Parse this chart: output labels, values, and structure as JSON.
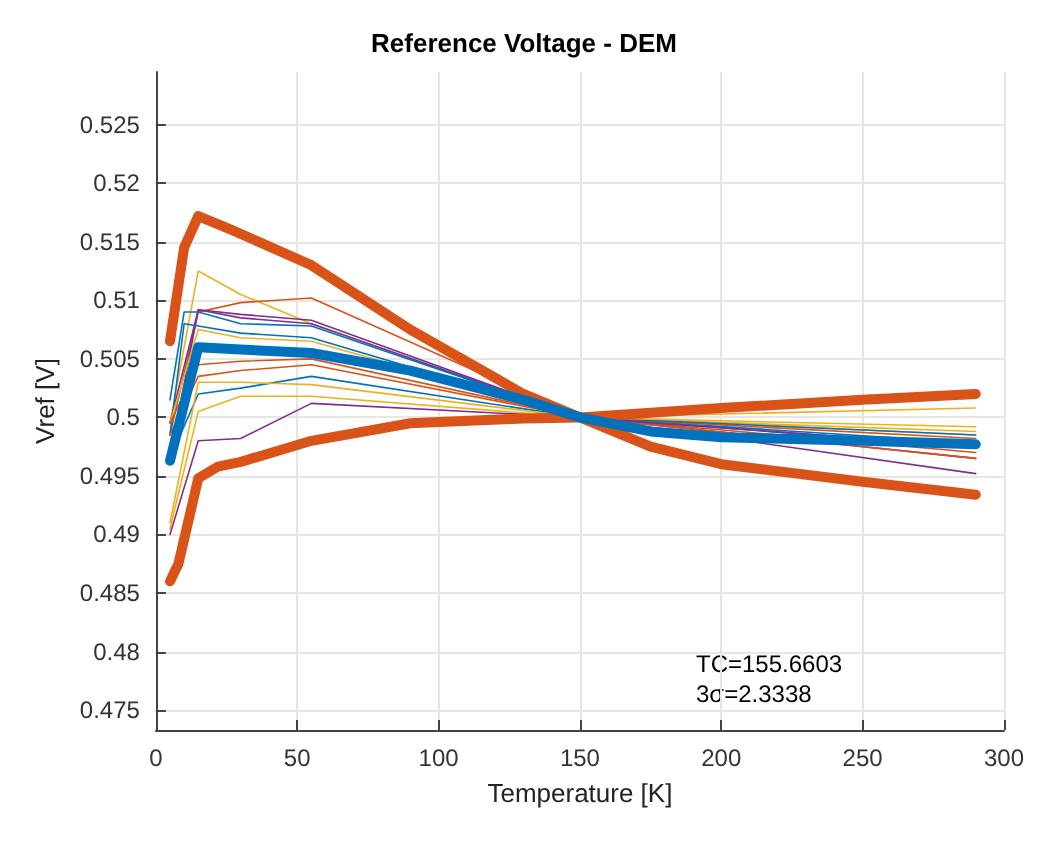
{
  "chart_data": {
    "type": "line",
    "title": "Reference Voltage - DEM",
    "xlabel": "Temperature [K]",
    "ylabel": "Vref [V]",
    "xlim": [
      0,
      300
    ],
    "xticks": [
      0,
      50,
      100,
      150,
      200,
      250,
      300
    ],
    "ylim": [
      0.4733,
      0.5295
    ],
    "yticks": [
      0.475,
      0.48,
      0.485,
      0.49,
      0.495,
      0.5,
      0.505,
      0.51,
      0.515,
      0.52,
      0.525
    ],
    "grid": true,
    "line_style": "solid",
    "marker": "none",
    "annotations": [
      "TC=155.6603",
      "3σ=2.3338"
    ],
    "series": [
      {
        "color": "#edb120",
        "x": [
          5,
          15,
          30,
          55,
          150,
          290
        ],
        "values": [
          0.4995,
          0.5125,
          0.5105,
          0.508,
          0.5,
          0.4985
        ]
      },
      {
        "color": "#d95319",
        "x": [
          5,
          15,
          30,
          55,
          150,
          290
        ],
        "values": [
          0.4985,
          0.509,
          0.5098,
          0.5102,
          0.5,
          0.497
        ]
      },
      {
        "color": "#7e2f8e",
        "x": [
          5,
          15,
          30,
          55,
          150,
          290
        ],
        "values": [
          0.4995,
          0.5092,
          0.5085,
          0.508,
          0.5,
          0.4965
        ]
      },
      {
        "color": "#0072bd",
        "x": [
          5,
          10,
          15,
          30,
          55,
          150,
          290
        ],
        "values": [
          0.5015,
          0.509,
          0.509,
          0.508,
          0.5078,
          0.5,
          0.4978
        ]
      },
      {
        "color": "#0072bd",
        "x": [
          5,
          10,
          15,
          30,
          55,
          150,
          290
        ],
        "values": [
          0.4985,
          0.508,
          0.5078,
          0.5072,
          0.5068,
          0.5,
          0.4975
        ]
      },
      {
        "color": "#7e2f8e",
        "x": [
          5,
          15,
          30,
          55,
          150,
          290
        ],
        "values": [
          0.4965,
          0.5092,
          0.5088,
          0.5083,
          0.5,
          0.4952
        ]
      },
      {
        "color": "#edb120",
        "x": [
          5,
          15,
          30,
          55,
          150,
          290
        ],
        "values": [
          0.4995,
          0.5075,
          0.5068,
          0.5065,
          0.5,
          0.4988
        ]
      },
      {
        "color": "#d95319",
        "x": [
          5,
          15,
          30,
          55,
          150,
          290
        ],
        "values": [
          0.4995,
          0.5045,
          0.5048,
          0.505,
          0.5,
          0.4965
        ]
      },
      {
        "color": "#d95319",
        "x": [
          5,
          15,
          30,
          55,
          150,
          290
        ],
        "values": [
          0.4985,
          0.5035,
          0.504,
          0.5045,
          0.5,
          0.4982
        ]
      },
      {
        "color": "#0072bd",
        "x": [
          5,
          15,
          30,
          55,
          150,
          290
        ],
        "values": [
          0.4965,
          0.502,
          0.5025,
          0.5035,
          0.5,
          0.4985
        ]
      },
      {
        "color": "#edb120",
        "x": [
          5,
          15,
          30,
          55,
          150,
          290
        ],
        "values": [
          0.491,
          0.503,
          0.503,
          0.5028,
          0.5,
          0.4992
        ]
      },
      {
        "color": "#edb120",
        "x": [
          5,
          15,
          30,
          55,
          150,
          290
        ],
        "values": [
          0.4905,
          0.5005,
          0.5018,
          0.5018,
          0.5,
          0.5008
        ]
      },
      {
        "color": "#7e2f8e",
        "x": [
          5,
          15,
          30,
          55,
          150,
          290
        ],
        "values": [
          0.49,
          0.498,
          0.4982,
          0.5012,
          0.5,
          0.4975
        ]
      },
      {
        "color": "#d95319",
        "x": [
          5,
          10,
          15,
          27,
          55,
          90,
          130,
          150,
          175,
          200,
          250,
          290
        ],
        "values": [
          0.5065,
          0.5145,
          0.5172,
          0.516,
          0.513,
          0.5075,
          0.502,
          0.5,
          0.4975,
          0.496,
          0.4945,
          0.4934
        ]
      },
      {
        "color": "#d95319",
        "x": [
          5,
          8,
          15,
          22,
          30,
          55,
          90,
          130,
          150,
          200,
          250,
          290
        ],
        "values": [
          0.486,
          0.4875,
          0.4948,
          0.4958,
          0.4962,
          0.498,
          0.4995,
          0.4999,
          0.5,
          0.5008,
          0.5015,
          0.502
        ]
      },
      {
        "color": "#0072bd",
        "x": [
          5,
          15,
          30,
          55,
          90,
          130,
          150,
          175,
          200,
          250,
          290
        ],
        "values": [
          0.4963,
          0.506,
          0.5058,
          0.5055,
          0.504,
          0.5015,
          0.5,
          0.4988,
          0.4983,
          0.498,
          0.4977
        ]
      }
    ]
  }
}
